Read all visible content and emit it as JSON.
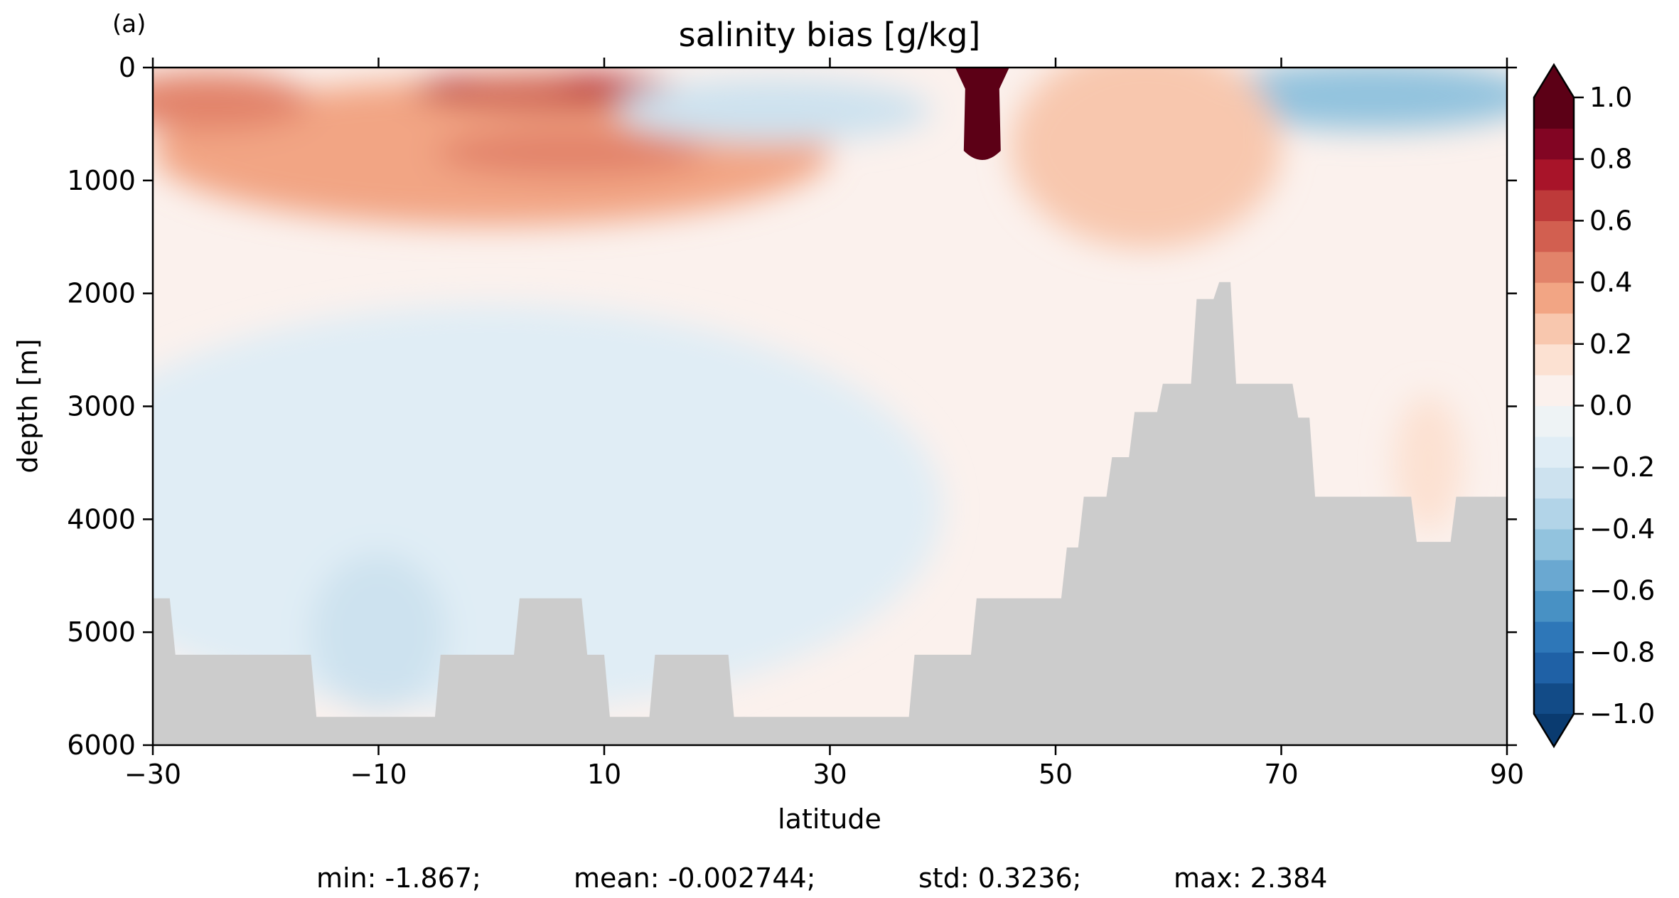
{
  "panel_label": "(a)",
  "colors": {
    "land": "#cccccc",
    "axis": "#000000",
    "colormap": [
      "#0a3b70",
      "#124b87",
      "#1f61a6",
      "#2e77b8",
      "#4891c4",
      "#6aa8d1",
      "#92c3de",
      "#b2d4e8",
      "#cde2ef",
      "#e0edf5",
      "#eef3f5",
      "#fbf1ed",
      "#fce1d2",
      "#f8c7ae",
      "#f2a584",
      "#e2836a",
      "#d25f50",
      "#be3a3a",
      "#a81429",
      "#820523",
      "#5c0016"
    ]
  },
  "chart_data": {
    "type": "heatmap",
    "title": "salinity bias [g/kg]",
    "xlabel": "latitude",
    "ylabel": "depth [m]",
    "xlim": [
      -30,
      90
    ],
    "ylim": [
      6000,
      0
    ],
    "x_ticks": [
      -30,
      -10,
      10,
      30,
      50,
      70,
      90
    ],
    "x_tick_labels": [
      "−30",
      "−10",
      "10",
      "30",
      "50",
      "70",
      "90"
    ],
    "y_ticks": [
      0,
      1000,
      2000,
      3000,
      4000,
      5000,
      6000
    ],
    "y_tick_labels": [
      "0",
      "1000",
      "2000",
      "3000",
      "4000",
      "5000",
      "6000"
    ],
    "colorbar": {
      "vmin": -1.0,
      "vmax": 1.0,
      "levels": 20,
      "extend": "both",
      "ticks": [
        1.0,
        0.8,
        0.6,
        0.4,
        0.2,
        0.0,
        -0.2,
        -0.4,
        -0.6,
        -0.8,
        -1.0
      ],
      "tick_labels": [
        "1.0",
        "0.8",
        "0.6",
        "0.4",
        "0.2",
        "0.0",
        "−0.2",
        "−0.4",
        "−0.6",
        "−0.8",
        "−1.0"
      ]
    },
    "bathymetry": [
      [
        -30,
        4700
      ],
      [
        -28.5,
        4700
      ],
      [
        -28,
        5200
      ],
      [
        -16,
        5200
      ],
      [
        -15.5,
        5750
      ],
      [
        -5,
        5750
      ],
      [
        -4.5,
        5200
      ],
      [
        2,
        5200
      ],
      [
        2.5,
        4700
      ],
      [
        8,
        4700
      ],
      [
        8.5,
        5200
      ],
      [
        10,
        5200
      ],
      [
        10.5,
        5750
      ],
      [
        14,
        5750
      ],
      [
        14.5,
        5200
      ],
      [
        21,
        5200
      ],
      [
        21.5,
        5750
      ],
      [
        37,
        5750
      ],
      [
        37.5,
        5200
      ],
      [
        42.5,
        5200
      ],
      [
        43,
        4700
      ],
      [
        50.5,
        4700
      ],
      [
        51,
        4250
      ],
      [
        52,
        4250
      ],
      [
        52.5,
        3800
      ],
      [
        54.5,
        3800
      ],
      [
        55,
        3450
      ],
      [
        56.5,
        3450
      ],
      [
        57,
        3050
      ],
      [
        59,
        3050
      ],
      [
        59.5,
        2800
      ],
      [
        62,
        2800
      ],
      [
        62.5,
        2050
      ],
      [
        64,
        2050
      ],
      [
        64.5,
        1900
      ],
      [
        65.5,
        1900
      ],
      [
        66,
        2800
      ],
      [
        71,
        2800
      ],
      [
        71.5,
        3100
      ],
      [
        72.5,
        3100
      ],
      [
        73,
        3800
      ],
      [
        81.5,
        3800
      ],
      [
        82,
        4200
      ],
      [
        85,
        4200
      ],
      [
        85.5,
        3800
      ],
      [
        90,
        3800
      ]
    ],
    "anomalies": [
      {
        "lat": 0,
        "depth": 750,
        "rx": 30,
        "ry": 650,
        "value": 0.3
      },
      {
        "lat": -25,
        "depth": 300,
        "rx": 9,
        "ry": 260,
        "value": 0.45
      },
      {
        "lat": 5,
        "depth": 200,
        "rx": 12,
        "ry": 160,
        "value": 0.6
      },
      {
        "lat": 2.5,
        "depth": 150,
        "rx": 5,
        "ry": 70,
        "value": 0.45
      },
      {
        "lat": 7,
        "depth": 750,
        "rx": 12,
        "ry": 220,
        "value": 0.45
      },
      {
        "lat": 25,
        "depth": 380,
        "rx": 14,
        "ry": 280,
        "value": -0.3
      },
      {
        "lat": 78,
        "depth": 250,
        "rx": 15,
        "ry": 300,
        "value": -0.45
      },
      {
        "lat": 58,
        "depth": 700,
        "rx": 12,
        "ry": 900,
        "value": 0.2
      },
      {
        "lat": 0,
        "depth": 3900,
        "rx": 40,
        "ry": 1800,
        "value": -0.15
      },
      {
        "lat": -10,
        "depth": 5000,
        "rx": 6,
        "ry": 700,
        "value": -0.3
      },
      {
        "lat": 83,
        "depth": 3500,
        "rx": 3,
        "ry": 600,
        "value": 0.1
      }
    ],
    "plume": {
      "lat": 43.5,
      "depth_top": 0,
      "depth_bottom": 850,
      "value": 1.05
    }
  },
  "stats": {
    "min": "min: -1.867;",
    "mean": "mean: -0.002744;",
    "std": "std: 0.3236;",
    "max": "max: 2.384"
  }
}
